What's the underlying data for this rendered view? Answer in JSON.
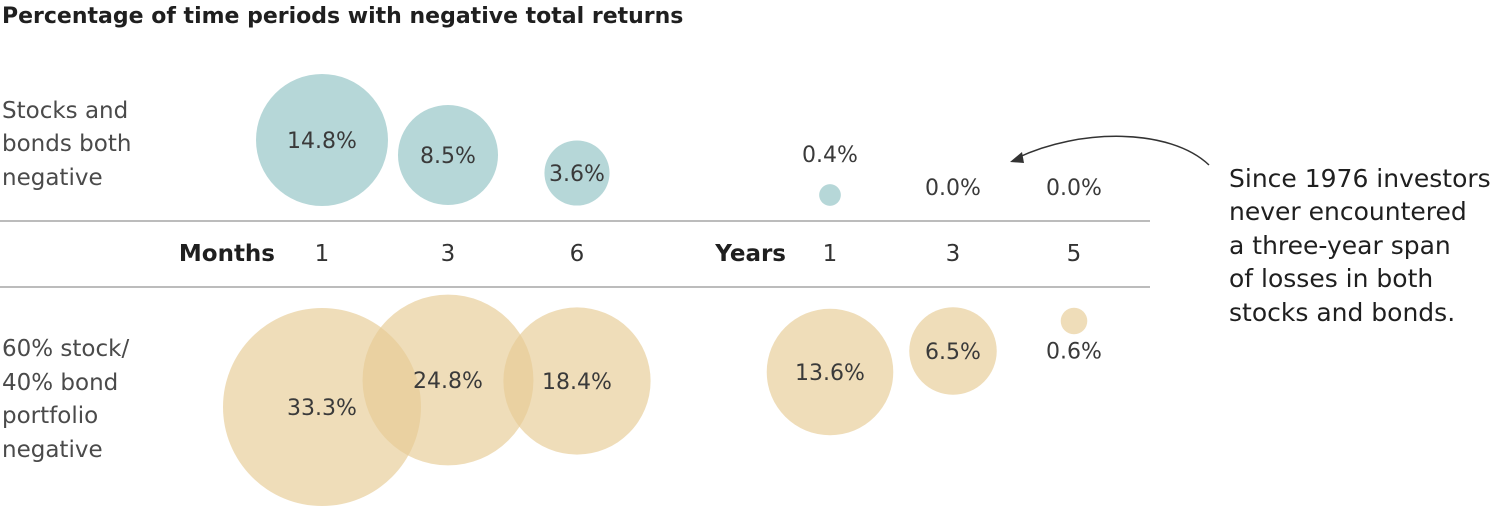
{
  "chart_data": {
    "type": "bubble",
    "title": "Percentage of time periods with negative total returns",
    "groups": [
      {
        "label": "Months",
        "periods": [
          "1",
          "3",
          "6"
        ]
      },
      {
        "label": "Years",
        "periods": [
          "1",
          "3",
          "5"
        ]
      }
    ],
    "series": [
      {
        "name": "Stocks and bonds both negative",
        "label_lines": [
          "Stocks and",
          "bonds both",
          "negative"
        ],
        "values": [
          14.8,
          8.5,
          3.6,
          0.4,
          0.0,
          0.0
        ],
        "labels": [
          "14.8%",
          "8.5%",
          "3.6%",
          "0.4%",
          "0.0%",
          "0.0%"
        ],
        "color": "#a9d0d1"
      },
      {
        "name": "60% stock/40% bond portfolio negative",
        "label_lines": [
          "60% stock/",
          "40% bond",
          "portfolio",
          "negative"
        ],
        "values": [
          33.3,
          24.8,
          18.4,
          13.6,
          6.5,
          0.6
        ],
        "labels": [
          "33.3%",
          "24.8%",
          "18.4%",
          "13.6%",
          "6.5%",
          "0.6%"
        ],
        "color": "#e6cb94"
      }
    ],
    "annotation": {
      "lines": [
        "Since 1976 investors",
        "never encountered",
        "a three-year span",
        "of losses in both",
        "stocks and bonds."
      ]
    }
  }
}
